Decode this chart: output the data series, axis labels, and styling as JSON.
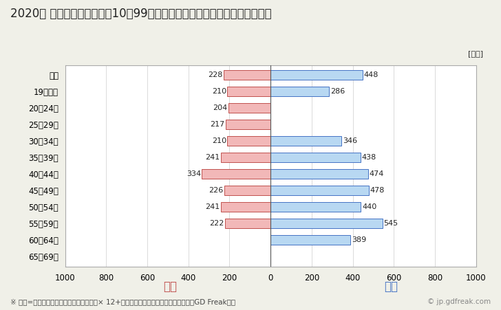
{
  "title": "2020年 民間企業（従業者数10〜99人）フルタイム労働者の男女別平均年収",
  "ylabel_unit": "[万円]",
  "footnote": "※ 年収=「きまって支給する現金給与額」× 12+「年間賞与その他特別給与額」としてGD Freak推計",
  "watermark": "© jp.gdfreak.com",
  "categories": [
    "全体",
    "19歳以下",
    "20〜24歳",
    "25〜29歳",
    "30〜34歳",
    "35〜39歳",
    "40〜44歳",
    "45〜49歳",
    "50〜54歳",
    "55〜59歳",
    "60〜64歳",
    "65〜69歳"
  ],
  "female_values": [
    228,
    210,
    204,
    217,
    210,
    241,
    334,
    226,
    241,
    222,
    0,
    0
  ],
  "male_values": [
    448,
    286,
    0,
    0,
    346,
    438,
    474,
    478,
    440,
    545,
    389,
    0
  ],
  "female_color": "#f2b8b8",
  "male_color": "#b8d8f2",
  "female_border": "#c0504d",
  "male_border": "#4472c4",
  "female_label": "女性",
  "male_label": "男性",
  "female_label_color": "#c0504d",
  "male_label_color": "#4472c4",
  "xlim": [
    -1000,
    1000
  ],
  "xticks": [
    -1000,
    -800,
    -600,
    -400,
    -200,
    0,
    200,
    400,
    600,
    800,
    1000
  ],
  "xticklabels": [
    "1000",
    "800",
    "600",
    "400",
    "200",
    "0",
    "200",
    "400",
    "600",
    "800",
    "1000"
  ],
  "background_color": "#f0f0e8",
  "plot_bg_color": "#ffffff",
  "title_fontsize": 12,
  "tick_fontsize": 8.5,
  "bar_label_fontsize": 8,
  "legend_fontsize": 12,
  "footnote_fontsize": 7.5,
  "bar_height": 0.58
}
